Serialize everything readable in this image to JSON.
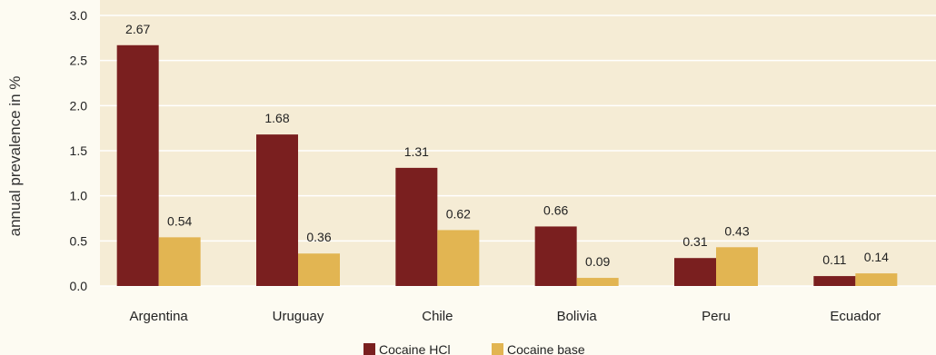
{
  "chart_data": {
    "type": "bar",
    "categories": [
      "Argentina",
      "Uruguay",
      "Chile",
      "Bolivia",
      "Peru",
      "Ecuador"
    ],
    "series": [
      {
        "name": "Cocaine HCl",
        "color": "#7a1f1f",
        "values": [
          2.67,
          1.68,
          1.31,
          0.66,
          0.31,
          0.11
        ],
        "labels": [
          "2.67",
          "1.68",
          "1.31",
          "0.66",
          "0.31",
          "0.11"
        ]
      },
      {
        "name": "Cocaine base",
        "color": "#e2b552",
        "values": [
          0.54,
          0.36,
          0.62,
          0.09,
          0.43,
          0.14
        ],
        "labels": [
          "0.54",
          "0.36",
          "0.62",
          "0.09",
          "0.43",
          "0.14"
        ]
      }
    ],
    "ylabel": "annual prevalence in %",
    "xlabel": "",
    "ylim": [
      0,
      3.0
    ],
    "yticks": [
      "0.0",
      "0.5",
      "1.0",
      "1.5",
      "2.0",
      "2.5",
      "3.0"
    ],
    "grid": true,
    "legend_position": "bottom-center",
    "colors": {
      "background": "#fdfbf2",
      "plot_background": "#f5ecd5",
      "gridline": "#ffffff"
    }
  }
}
